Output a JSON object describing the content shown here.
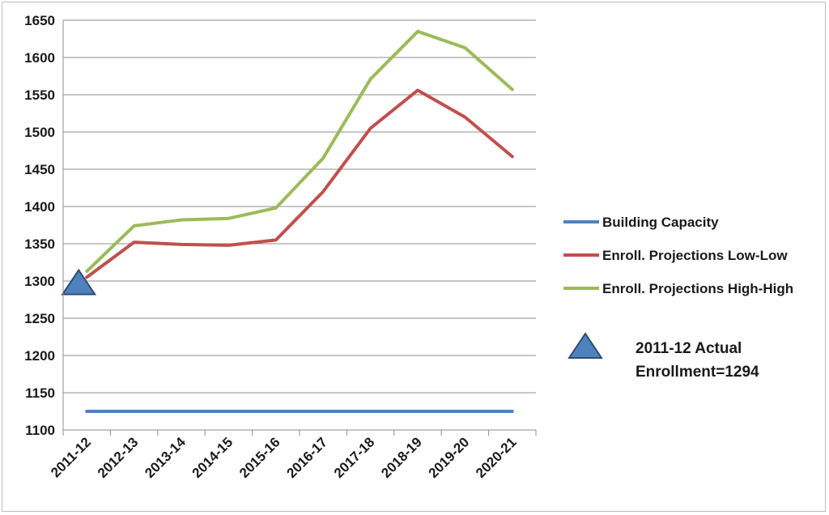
{
  "chart_data": {
    "type": "line",
    "title": "",
    "xlabel": "",
    "ylabel": "",
    "categories": [
      "2011-12",
      "2012-13",
      "2013-14",
      "2014-15",
      "2015-16",
      "2016-17",
      "2017-18",
      "2018-19",
      "2019-20",
      "2020-21"
    ],
    "ylim": [
      1100,
      1650
    ],
    "yticks": [
      1100,
      1150,
      1200,
      1250,
      1300,
      1350,
      1400,
      1450,
      1500,
      1550,
      1600,
      1650
    ],
    "grid": "horizontal",
    "legend_position": "right",
    "series": [
      {
        "name": "Building Capacity",
        "color": "#4f81bd",
        "values": [
          1125,
          1125,
          1125,
          1125,
          1125,
          1125,
          1125,
          1125,
          1125,
          1125
        ]
      },
      {
        "name": "Enroll. Projections Low-Low",
        "color": "#c0504d",
        "values": [
          1305,
          1352,
          1349,
          1348,
          1355,
          1420,
          1505,
          1556,
          1520,
          1467
        ]
      },
      {
        "name": "Enroll. Projections High-High",
        "color": "#9bbb59",
        "values": [
          1313,
          1374,
          1382,
          1384,
          1398,
          1465,
          1571,
          1635,
          1613,
          1557
        ]
      }
    ],
    "annotation": {
      "lines": [
        "2011-12 Actual",
        "Enrollment=1294"
      ],
      "category": "2011-12",
      "value": 1294,
      "marker": "triangle",
      "color": "#4f81bd"
    }
  }
}
